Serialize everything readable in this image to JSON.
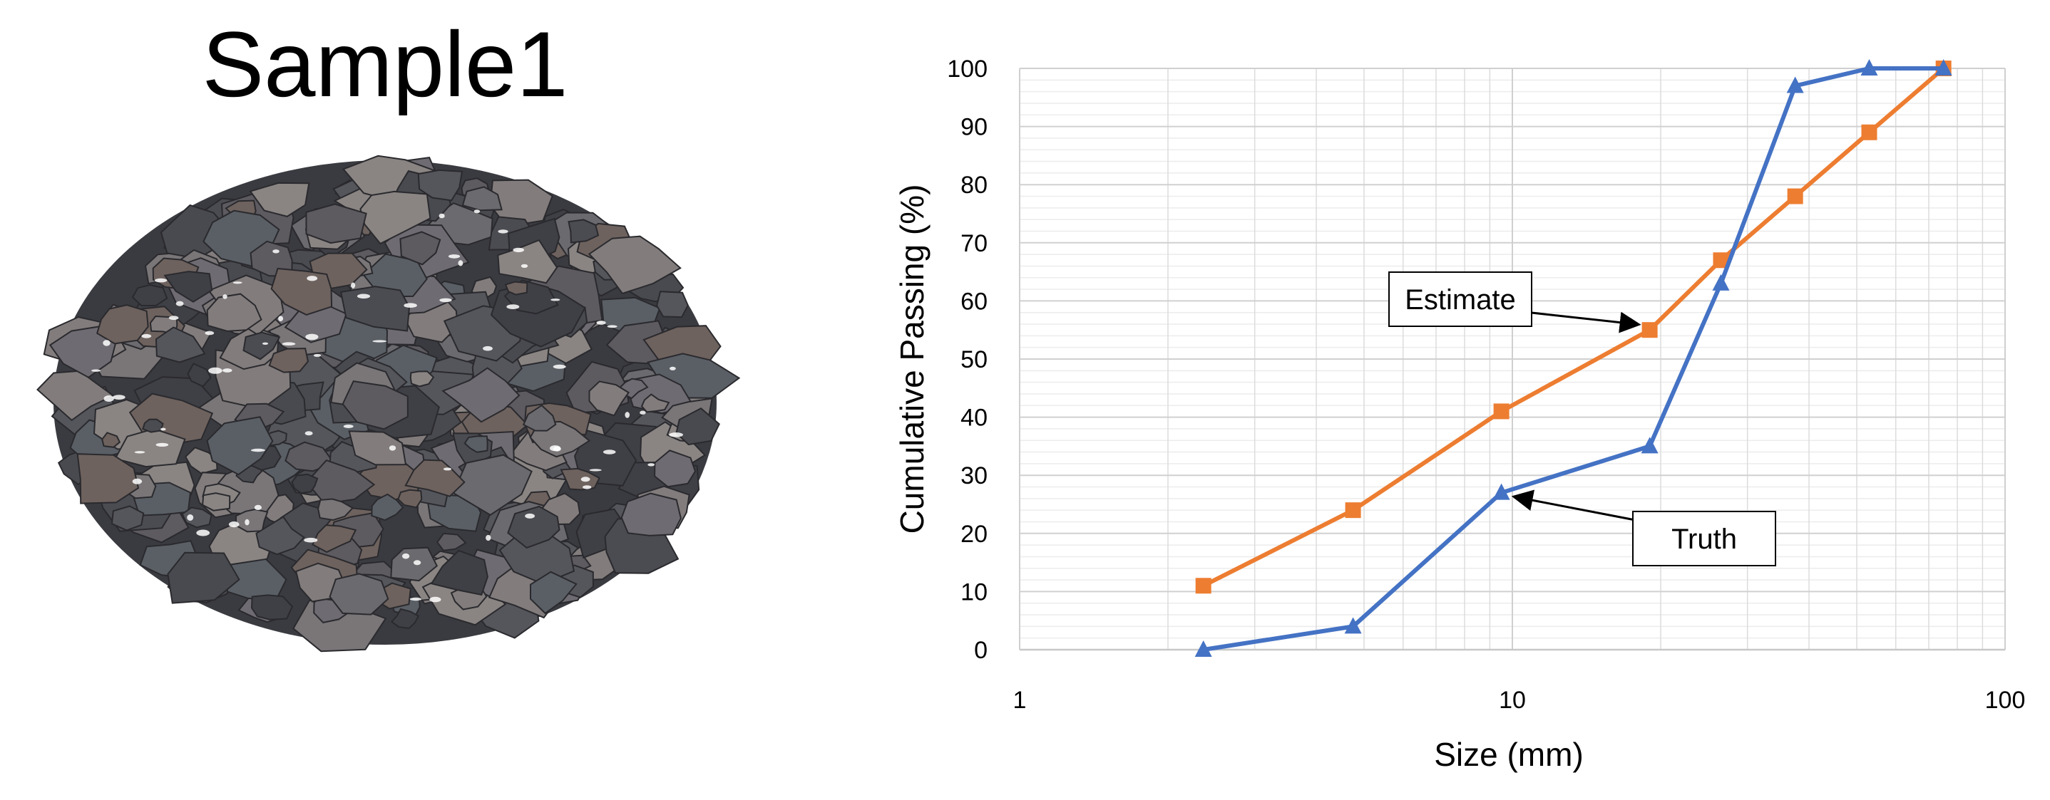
{
  "sample": {
    "title": "Sample1",
    "image": "rock-pile-photo"
  },
  "chart_data": {
    "type": "line",
    "x_scale": "log",
    "xlim": [
      1,
      100
    ],
    "ylim": [
      0,
      100
    ],
    "x_ticks": [
      "1",
      "10",
      "100"
    ],
    "y_ticks": [
      "0",
      "10",
      "20",
      "30",
      "40",
      "50",
      "60",
      "70",
      "80",
      "90",
      "100"
    ],
    "xlabel": "Size (mm)",
    "ylabel": "Cumulative  Passing (%)",
    "grid": true,
    "legend": "none",
    "series": [
      {
        "name": "Estimate",
        "color": "#ED7D31",
        "marker": "square",
        "x": [
          2.36,
          4.75,
          9.5,
          19,
          26.5,
          37.5,
          53,
          75
        ],
        "y": [
          11,
          24,
          41,
          55,
          67,
          78,
          89,
          100
        ]
      },
      {
        "name": "Truth",
        "color": "#4472C4",
        "marker": "triangle",
        "x": [
          2.36,
          4.75,
          9.5,
          19,
          26.5,
          37.5,
          53,
          75
        ],
        "y": [
          0,
          4,
          27,
          35,
          63,
          97,
          100,
          100
        ]
      }
    ],
    "annotations": [
      {
        "text": "Estimate",
        "points_to_series": "Estimate",
        "at_x": 19
      },
      {
        "text": "Truth",
        "points_to_series": "Truth",
        "at_x": 9.5
      }
    ]
  }
}
